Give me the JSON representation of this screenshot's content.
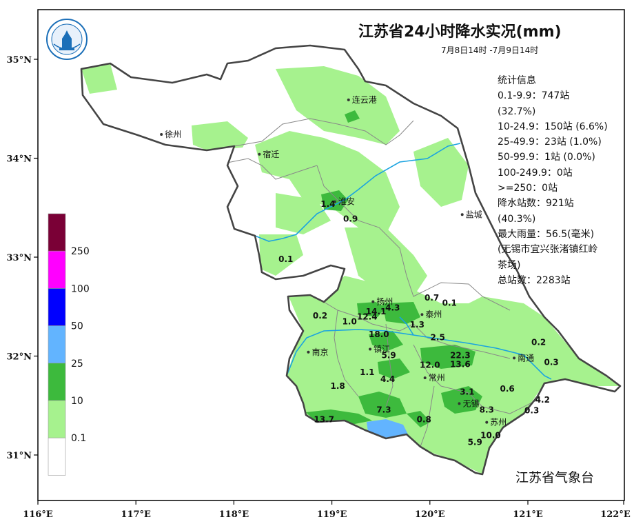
{
  "title": "江苏省24小时降水实况(mm)",
  "subtitle": "7月8日14时 -7月9日14时",
  "agency": "江苏省气象台",
  "stats": {
    "header": "统计信息",
    "lines": [
      "0.1-9.9：747站",
      "(32.7%)",
      "10-24.9：150站 (6.6%)",
      "25-49.9：23站 (1.0%)",
      "50-99.9：1站 (0.0%)",
      "100-249.9：0站",
      ">=250：0站",
      "降水站数：921站",
      "(40.3%)",
      "最大雨量：56.5(毫米)",
      "(无锡市宜兴张渚镇红岭",
      "茶场)",
      "总站数：2283站"
    ]
  },
  "axes": {
    "lon_ticks": [
      "116°E",
      "117°E",
      "118°E",
      "119°E",
      "120°E",
      "121°E",
      "122°E"
    ],
    "lon_values": [
      116,
      117,
      118,
      119,
      120,
      121,
      122
    ],
    "lat_ticks": [
      "35°N",
      "34°N",
      "33°N",
      "32°N",
      "31°N"
    ],
    "lat_values": [
      35,
      34,
      33,
      32,
      31
    ]
  },
  "legend": {
    "labels": [
      "250",
      "100",
      "50",
      "25",
      "10",
      "0.1"
    ],
    "colors": [
      "#7a0036",
      "#ff00ff",
      "#0000ff",
      "#62b4ff",
      "#3dba3d",
      "#a6f28e",
      "#ffffff"
    ]
  },
  "colors": {
    "light_rain": "#a6f28e",
    "moderate_rain": "#3dba3d",
    "heavy_rain": "#62b4ff",
    "river": "#1aa3e0",
    "province_border": "#444444",
    "city_border": "#888888"
  },
  "cities": [
    {
      "name": "连云港",
      "lon": 119.17,
      "lat": 34.59
    },
    {
      "name": "徐州",
      "lon": 117.26,
      "lat": 34.24
    },
    {
      "name": "宿迁",
      "lon": 118.26,
      "lat": 34.04
    },
    {
      "name": "淮安",
      "lon": 119.03,
      "lat": 33.56
    },
    {
      "name": "盐城",
      "lon": 120.33,
      "lat": 33.43
    },
    {
      "name": "扬州",
      "lon": 119.42,
      "lat": 32.55
    },
    {
      "name": "泰州",
      "lon": 119.92,
      "lat": 32.42
    },
    {
      "name": "镇江",
      "lon": 119.39,
      "lat": 32.07
    },
    {
      "name": "南京",
      "lon": 118.76,
      "lat": 32.04
    },
    {
      "name": "南通",
      "lon": 120.86,
      "lat": 31.98
    },
    {
      "name": "常州",
      "lon": 119.95,
      "lat": 31.78
    },
    {
      "name": "无锡",
      "lon": 120.3,
      "lat": 31.52
    },
    {
      "name": "苏州",
      "lon": 120.58,
      "lat": 31.33
    }
  ],
  "values": [
    {
      "text": "1.4",
      "lon": 118.96,
      "lat": 33.51
    },
    {
      "text": "0.9",
      "lon": 119.19,
      "lat": 33.36
    },
    {
      "text": "0.1",
      "lon": 118.53,
      "lat": 32.95
    },
    {
      "text": "0.7",
      "lon": 120.02,
      "lat": 32.56
    },
    {
      "text": "0.1",
      "lon": 120.2,
      "lat": 32.51
    },
    {
      "text": "0.2",
      "lon": 118.88,
      "lat": 32.38
    },
    {
      "text": "1.0",
      "lon": 119.18,
      "lat": 32.32
    },
    {
      "text": "12.4",
      "lon": 119.36,
      "lat": 32.37
    },
    {
      "text": "14.1",
      "lon": 119.45,
      "lat": 32.42
    },
    {
      "text": "4.3",
      "lon": 119.62,
      "lat": 32.46
    },
    {
      "text": "1.3",
      "lon": 119.87,
      "lat": 32.29
    },
    {
      "text": "18.0",
      "lon": 119.48,
      "lat": 32.19
    },
    {
      "text": "2.5",
      "lon": 120.08,
      "lat": 32.16
    },
    {
      "text": "0.2",
      "lon": 121.11,
      "lat": 32.11
    },
    {
      "text": "5.9",
      "lon": 119.58,
      "lat": 31.98
    },
    {
      "text": "22.3",
      "lon": 120.31,
      "lat": 31.98
    },
    {
      "text": "12.0",
      "lon": 120.0,
      "lat": 31.88
    },
    {
      "text": "13.6",
      "lon": 120.31,
      "lat": 31.89
    },
    {
      "text": "0.3",
      "lon": 121.24,
      "lat": 31.91
    },
    {
      "text": "1.1",
      "lon": 119.36,
      "lat": 31.81
    },
    {
      "text": "4.4",
      "lon": 119.57,
      "lat": 31.74
    },
    {
      "text": "1.8",
      "lon": 119.06,
      "lat": 31.67
    },
    {
      "text": "0.6",
      "lon": 120.79,
      "lat": 31.64
    },
    {
      "text": "3.1",
      "lon": 120.38,
      "lat": 31.61
    },
    {
      "text": "4.2",
      "lon": 121.15,
      "lat": 31.53
    },
    {
      "text": "7.3",
      "lon": 119.53,
      "lat": 31.43
    },
    {
      "text": "8.3",
      "lon": 120.58,
      "lat": 31.43
    },
    {
      "text": "0.3",
      "lon": 121.04,
      "lat": 31.42
    },
    {
      "text": "13.7",
      "lon": 118.92,
      "lat": 31.33
    },
    {
      "text": "0.8",
      "lon": 119.94,
      "lat": 31.33
    },
    {
      "text": "10.0",
      "lon": 120.62,
      "lat": 31.17
    },
    {
      "text": "5.9",
      "lon": 120.46,
      "lat": 31.1
    }
  ]
}
